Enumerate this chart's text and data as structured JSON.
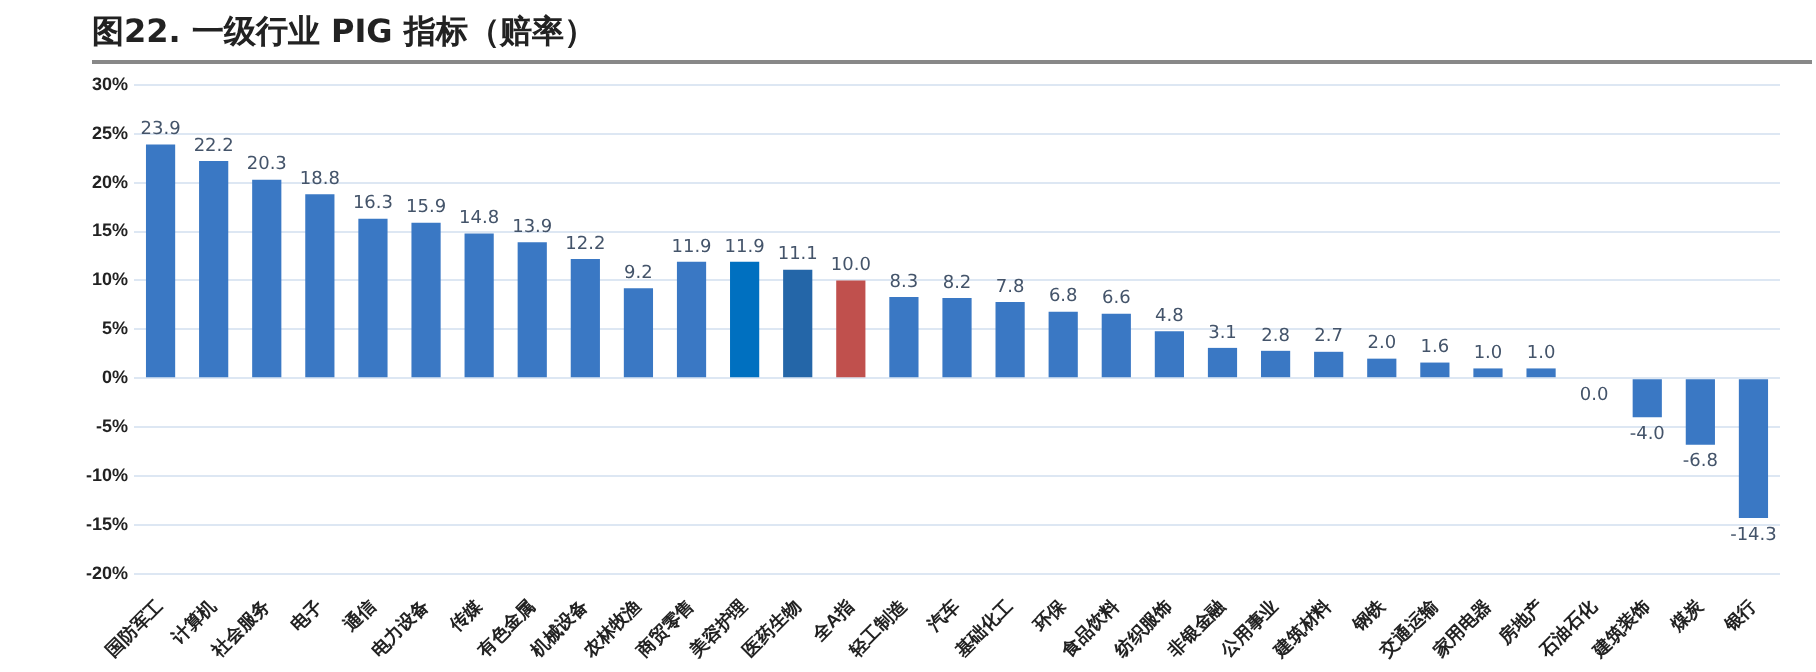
{
  "chart_data": {
    "type": "bar",
    "title": "图22. 一级行业 PIG 指标（赔率）",
    "categories": [
      "国防军工",
      "计算机",
      "社会服务",
      "电子",
      "通信",
      "电力设备",
      "传媒",
      "有色金属",
      "机械设备",
      "农林牧渔",
      "商贸零售",
      "美容护理",
      "医药生物",
      "全A指",
      "轻工制造",
      "汽车",
      "基础化工",
      "环保",
      "食品饮料",
      "纺织服饰",
      "非银金融",
      "公用事业",
      "建筑材料",
      "钢铁",
      "交通运输",
      "家用电器",
      "房地产",
      "石油石化",
      "建筑装饰",
      "煤炭",
      "银行"
    ],
    "values": [
      23.9,
      22.2,
      20.3,
      18.8,
      16.3,
      15.9,
      14.8,
      13.9,
      12.2,
      9.2,
      11.9,
      11.9,
      11.1,
      10.0,
      8.3,
      8.2,
      7.8,
      6.8,
      6.6,
      4.8,
      3.1,
      2.8,
      2.7,
      2.0,
      1.6,
      1.0,
      1.0,
      0.0,
      -4.0,
      -6.8,
      -14.3
    ],
    "value_labels": [
      "23.9",
      "22.2",
      "20.3",
      "18.8",
      "16.3",
      "15.9",
      "14.8",
      "13.9",
      "12.2",
      "9.2",
      "11.9",
      "11.9",
      "11.1",
      "10.0",
      "8.3",
      "8.2",
      "7.8",
      "6.8",
      "6.6",
      "4.8",
      "3.1",
      "2.8",
      "2.7",
      "2.0",
      "1.6",
      "1.0",
      "1.0",
      "0.0",
      "-4.0",
      "-6.8",
      "-14.3"
    ],
    "colors": [
      "#3a78c4",
      "#3a78c4",
      "#3a78c4",
      "#3a78c4",
      "#3a78c4",
      "#3a78c4",
      "#3a78c4",
      "#3a78c4",
      "#3a78c4",
      "#3a78c4",
      "#3a78c4",
      "#0070c0",
      "#2466a8",
      "#c0504d",
      "#3a78c4",
      "#3a78c4",
      "#3a78c4",
      "#3a78c4",
      "#3a78c4",
      "#3a78c4",
      "#3a78c4",
      "#3a78c4",
      "#3a78c4",
      "#3a78c4",
      "#3a78c4",
      "#3a78c4",
      "#3a78c4",
      "#3a78c4",
      "#3a78c4",
      "#3a78c4",
      "#3a78c4"
    ],
    "ylim": [
      -20,
      30
    ],
    "yticks": [
      {
        "value": -20,
        "label": "-20%"
      },
      {
        "value": -15,
        "label": "-15%"
      },
      {
        "value": -10,
        "label": "-10%"
      },
      {
        "value": -5,
        "label": "-5%"
      },
      {
        "value": 0,
        "label": "0%"
      },
      {
        "value": 5,
        "label": "5%"
      },
      {
        "value": 10,
        "label": "10%"
      },
      {
        "value": 15,
        "label": "15%"
      },
      {
        "value": 20,
        "label": "20%"
      },
      {
        "value": 25,
        "label": "25%"
      },
      {
        "value": 30,
        "label": "30%"
      }
    ],
    "grid": "y"
  }
}
